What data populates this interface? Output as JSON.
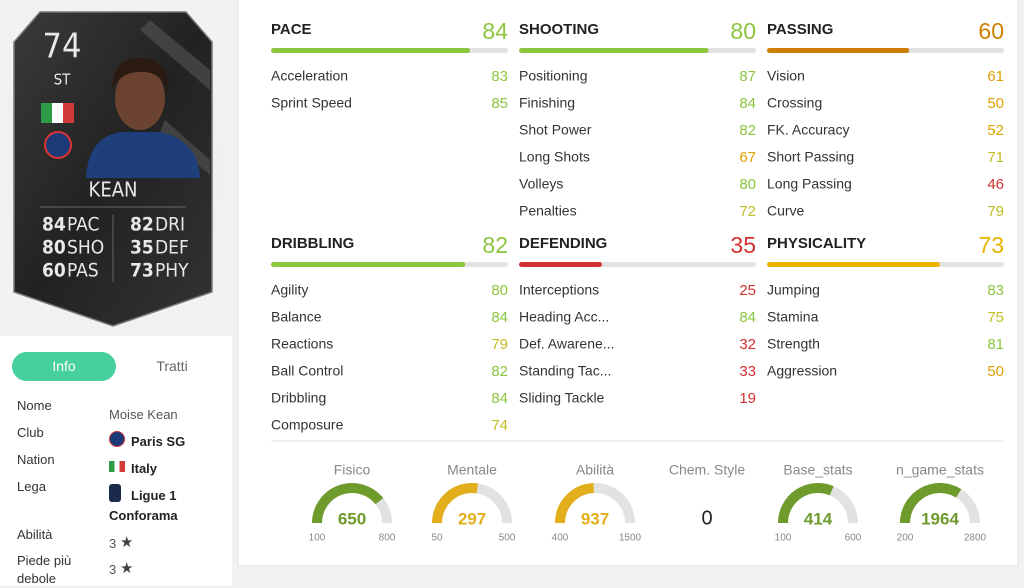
{
  "card": {
    "rating": 74,
    "position": "ST",
    "name": "KEAN",
    "stats": [
      {
        "value": 84,
        "label": "PAC"
      },
      {
        "value": 82,
        "label": "DRI"
      },
      {
        "value": 80,
        "label": "SHO"
      },
      {
        "value": 35,
        "label": "DEF"
      },
      {
        "value": 60,
        "label": "PAS"
      },
      {
        "value": 73,
        "label": "PHY"
      }
    ]
  },
  "tabs": [
    "Info",
    "Tratti"
  ],
  "info": [
    {
      "label": "Nome",
      "value": "Moise Kean"
    },
    {
      "label": "Club",
      "value": "Paris SG"
    },
    {
      "label": "Nation",
      "value": "Italy"
    },
    {
      "label": "Lega",
      "value": "Ligue 1 Conforama"
    },
    {
      "label": "Abilità",
      "value": 3
    },
    {
      "label": "Piede più debole",
      "value": 3
    }
  ],
  "bar_range": [
    0,
    100
  ],
  "groups": [
    {
      "name": "PACE",
      "value": 84,
      "color": "#8cc63f",
      "stats": [
        {
          "name": "Acceleration",
          "value": 83,
          "color": "#8cc63f"
        },
        {
          "name": "Sprint Speed",
          "value": 85,
          "color": "#8cc63f"
        }
      ]
    },
    {
      "name": "SHOOTING",
      "value": 80,
      "color": "#8cc63f",
      "stats": [
        {
          "name": "Positioning",
          "value": 87,
          "color": "#8cc63f"
        },
        {
          "name": "Finishing",
          "value": 84,
          "color": "#8cc63f"
        },
        {
          "name": "Shot Power",
          "value": 82,
          "color": "#8cc63f"
        },
        {
          "name": "Long Shots",
          "value": 67,
          "color": "#e0a000"
        },
        {
          "name": "Volleys",
          "value": 80,
          "color": "#8cc63f"
        },
        {
          "name": "Penalties",
          "value": 72,
          "color": "#c2bd22"
        }
      ]
    },
    {
      "name": "PASSING",
      "value": 60,
      "color": "#cf7f00",
      "stats": [
        {
          "name": "Vision",
          "value": 61,
          "color": "#e0a000"
        },
        {
          "name": "Crossing",
          "value": 50,
          "color": "#e0a000"
        },
        {
          "name": "FK. Accuracy",
          "value": 52,
          "color": "#e0a000"
        },
        {
          "name": "Short Passing",
          "value": 71,
          "color": "#c2bd22"
        },
        {
          "name": "Long Passing",
          "value": 46,
          "color": "#d33030"
        },
        {
          "name": "Curve",
          "value": 79,
          "color": "#c2bd22"
        }
      ]
    },
    {
      "name": "DRIBBLING",
      "value": 82,
      "color": "#8cc63f",
      "stats": [
        {
          "name": "Agility",
          "value": 80,
          "color": "#8cc63f"
        },
        {
          "name": "Balance",
          "value": 84,
          "color": "#8cc63f"
        },
        {
          "name": "Reactions",
          "value": 79,
          "color": "#c2bd22"
        },
        {
          "name": "Ball Control",
          "value": 82,
          "color": "#8cc63f"
        },
        {
          "name": "Dribbling",
          "value": 84,
          "color": "#8cc63f"
        },
        {
          "name": "Composure",
          "value": 74,
          "color": "#c2bd22"
        }
      ]
    },
    {
      "name": "DEFENDING",
      "value": 35,
      "color": "#d33030",
      "stats": [
        {
          "name": "Interceptions",
          "value": 25,
          "color": "#d33030"
        },
        {
          "name": "Heading Acc...",
          "value": 84,
          "color": "#8cc63f"
        },
        {
          "name": "Def. Awarene...",
          "value": 32,
          "color": "#d33030"
        },
        {
          "name": "Standing Tac...",
          "value": 33,
          "color": "#d33030"
        },
        {
          "name": "Sliding Tackle",
          "value": 19,
          "color": "#d33030"
        }
      ]
    },
    {
      "name": "PHYSICALITY",
      "value": 73,
      "color": "#ecb200",
      "stats": [
        {
          "name": "Jumping",
          "value": 83,
          "color": "#8cc63f"
        },
        {
          "name": "Stamina",
          "value": 75,
          "color": "#c2bd22"
        },
        {
          "name": "Strength",
          "value": 81,
          "color": "#8cc63f"
        },
        {
          "name": "Aggression",
          "value": 50,
          "color": "#e0a000"
        }
      ]
    }
  ],
  "gauges": [
    {
      "label": "Fisico",
      "value": 650,
      "min": 100,
      "max": 800,
      "color": "#6f9a2c"
    },
    {
      "label": "Mentale",
      "value": 297,
      "min": 50,
      "max": 500,
      "color": "#e2ae1c"
    },
    {
      "label": "Abilità",
      "value": 937,
      "min": 400,
      "max": 1500,
      "color": "#e2ae1c"
    },
    {
      "label": "Chem. Style",
      "value": 0
    },
    {
      "label": "Base_stats",
      "value": 414,
      "min": 100,
      "max": 600,
      "color": "#6f9a2c"
    },
    {
      "label": "n_game_stats",
      "value": 1964,
      "min": 200,
      "max": 2800,
      "color": "#6f9a2c"
    }
  ]
}
